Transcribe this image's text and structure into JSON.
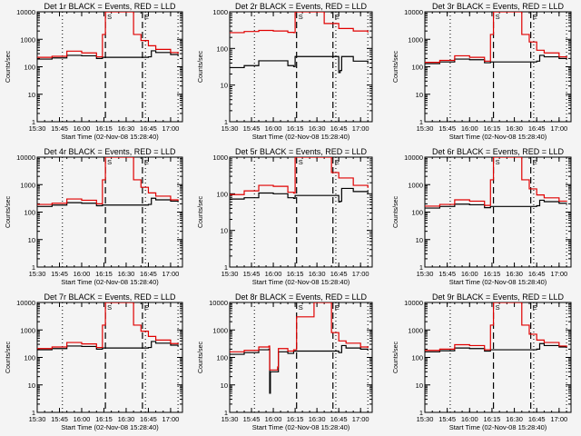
{
  "chart_data": [
    {
      "type": "line",
      "title": "Det 1r BLACK = Events, RED = LLD",
      "xlabel": "Start Time (02-Nov-08 15:28:40)",
      "ylabel": "Counts/sec",
      "yscale": "log",
      "ylim": [
        1,
        10000
      ],
      "yticks": [
        "1",
        "10",
        "100",
        "1000",
        "10000"
      ],
      "xlim": [
        "15:30",
        "17:08"
      ],
      "xticks": [
        "15:30",
        "15:45",
        "16:00",
        "16:15",
        "16:30",
        "16:45",
        "17:00"
      ],
      "markers": {
        "dashed": [
          "16:16",
          "16:41"
        ],
        "dotted": [
          "15:47",
          "16:43",
          "17:05"
        ],
        "labels": [
          "S",
          "E"
        ]
      },
      "series": [
        {
          "name": "Events",
          "color": "#000000",
          "x": [
            "15:30",
            "15:40",
            "15:50",
            "16:00",
            "16:10",
            "16:14",
            "16:45",
            "16:47",
            "16:50",
            "17:00",
            "17:05"
          ],
          "values": [
            190,
            210,
            260,
            250,
            200,
            220,
            230,
            380,
            330,
            280,
            260
          ]
        },
        {
          "name": "LLD",
          "color": "#e00000",
          "x": [
            "15:30",
            "15:40",
            "15:50",
            "16:00",
            "16:10",
            "16:14",
            "16:16",
            "16:30",
            "16:35",
            "16:40",
            "16:45",
            "16:50",
            "17:00",
            "17:05"
          ],
          "values": [
            220,
            240,
            370,
            320,
            230,
            1500,
            10000,
            10000,
            1500,
            900,
            580,
            430,
            330,
            300
          ]
        }
      ]
    },
    {
      "type": "line",
      "title": "Det 2r BLACK = Events, RED = LLD",
      "xlabel": "Start Time (02-Nov-08 15:28:40)",
      "ylabel": "Counts/sec",
      "yscale": "log",
      "ylim": [
        1,
        1000
      ],
      "yticks": [
        "1",
        "10",
        "100",
        "1000"
      ],
      "xlim": [
        "15:30",
        "17:08"
      ],
      "xticks": [
        "15:30",
        "15:45",
        "16:00",
        "16:15",
        "16:30",
        "16:45",
        "17:00"
      ],
      "markers": {
        "dashed": [
          "16:16",
          "16:41"
        ],
        "dotted": [
          "15:47",
          "16:43",
          "17:05"
        ],
        "labels": [
          "S",
          "E"
        ]
      },
      "series": [
        {
          "name": "Events",
          "color": "#000000",
          "x": [
            "15:30",
            "15:40",
            "15:50",
            "16:00",
            "16:10",
            "16:14",
            "16:15",
            "16:45",
            "16:46",
            "16:47",
            "16:55",
            "17:05"
          ],
          "values": [
            30,
            34,
            46,
            46,
            34,
            32,
            60,
            22,
            25,
            60,
            45,
            38
          ]
        },
        {
          "name": "LLD",
          "color": "#e00000",
          "x": [
            "15:30",
            "15:40",
            "15:50",
            "16:00",
            "16:10",
            "16:14",
            "16:15",
            "16:30",
            "16:35",
            "16:45",
            "16:55",
            "17:05"
          ],
          "values": [
            270,
            290,
            310,
            300,
            275,
            270,
            1000,
            1000,
            480,
            350,
            300,
            270
          ]
        }
      ]
    },
    {
      "type": "line",
      "title": "Det 3r BLACK = Events, RED = LLD",
      "xlabel": "Start Time (02-Nov-08 15:28:40)",
      "ylabel": "Counts/sec",
      "yscale": "log",
      "ylim": [
        1,
        10000
      ],
      "yticks": [
        "1",
        "10",
        "100",
        "1000",
        "10000"
      ],
      "xlim": [
        "15:30",
        "17:08"
      ],
      "xticks": [
        "15:30",
        "15:45",
        "16:00",
        "16:15",
        "16:30",
        "16:45",
        "17:00"
      ],
      "markers": {
        "dashed": [
          "16:16",
          "16:41"
        ],
        "dotted": [
          "15:47",
          "16:43",
          "17:05"
        ],
        "labels": [
          "S",
          "E"
        ]
      },
      "series": [
        {
          "name": "Events",
          "color": "#000000",
          "x": [
            "15:30",
            "15:40",
            "15:50",
            "16:00",
            "16:10",
            "16:14",
            "16:45",
            "16:47",
            "16:50",
            "17:00",
            "17:05"
          ],
          "values": [
            130,
            150,
            190,
            180,
            140,
            150,
            160,
            260,
            230,
            200,
            190
          ]
        },
        {
          "name": "LLD",
          "color": "#e00000",
          "x": [
            "15:30",
            "15:40",
            "15:50",
            "16:00",
            "16:10",
            "16:14",
            "16:16",
            "16:30",
            "16:35",
            "16:40",
            "16:45",
            "16:50",
            "17:00",
            "17:05"
          ],
          "values": [
            145,
            170,
            250,
            220,
            160,
            1500,
            10000,
            10000,
            1500,
            800,
            400,
            320,
            230,
            210
          ]
        }
      ]
    },
    {
      "type": "line",
      "title": "Det 4r BLACK = Events, RED = LLD",
      "xlabel": "Start Time (02-Nov-08 15:28:40)",
      "ylabel": "Counts/sec",
      "yscale": "log",
      "ylim": [
        1,
        10000
      ],
      "yticks": [
        "1",
        "10",
        "100",
        "1000",
        "10000"
      ],
      "xlim": [
        "15:30",
        "17:08"
      ],
      "xticks": [
        "15:30",
        "15:45",
        "16:00",
        "16:15",
        "16:30",
        "16:45",
        "17:00"
      ],
      "markers": {
        "dashed": [
          "16:16",
          "16:41"
        ],
        "dotted": [
          "15:47",
          "16:43",
          "17:05"
        ],
        "labels": [
          "S",
          "E"
        ]
      },
      "series": [
        {
          "name": "Events",
          "color": "#000000",
          "x": [
            "15:30",
            "15:40",
            "15:50",
            "16:00",
            "16:10",
            "16:14",
            "16:45",
            "16:47",
            "16:50",
            "17:00",
            "17:05"
          ],
          "values": [
            160,
            180,
            220,
            210,
            170,
            180,
            190,
            320,
            280,
            250,
            230
          ]
        },
        {
          "name": "LLD",
          "color": "#e00000",
          "x": [
            "15:30",
            "15:40",
            "15:50",
            "16:00",
            "16:10",
            "16:14",
            "16:16",
            "16:30",
            "16:35",
            "16:40",
            "16:45",
            "16:50",
            "17:00",
            "17:05"
          ],
          "values": [
            190,
            210,
            300,
            270,
            200,
            1500,
            10000,
            10000,
            1500,
            800,
            500,
            380,
            280,
            260
          ]
        }
      ]
    },
    {
      "type": "line",
      "title": "Det 5r BLACK = Events, RED = LLD",
      "xlabel": "Start Time (02-Nov-08 15:28:40)",
      "ylabel": "Counts/sec",
      "yscale": "log",
      "ylim": [
        1,
        1000
      ],
      "yticks": [
        "1",
        "10",
        "100",
        "1000"
      ],
      "xlim": [
        "15:30",
        "17:08"
      ],
      "xticks": [
        "15:30",
        "15:45",
        "16:00",
        "16:15",
        "16:30",
        "16:45",
        "17:00"
      ],
      "markers": {
        "dashed": [
          "16:16",
          "16:41"
        ],
        "dotted": [
          "15:47",
          "16:43",
          "17:05"
        ],
        "labels": [
          "S",
          "E"
        ]
      },
      "series": [
        {
          "name": "Events",
          "color": "#000000",
          "x": [
            "15:30",
            "15:40",
            "15:50",
            "16:00",
            "16:10",
            "16:14",
            "16:15",
            "16:45",
            "16:46",
            "16:47",
            "16:55",
            "17:05"
          ],
          "values": [
            72,
            78,
            105,
            100,
            78,
            75,
            90,
            60,
            62,
            140,
            115,
            105
          ]
        },
        {
          "name": "LLD",
          "color": "#e00000",
          "x": [
            "15:30",
            "15:40",
            "15:50",
            "16:00",
            "16:10",
            "16:14",
            "16:15",
            "16:30",
            "16:40",
            "16:45",
            "16:55",
            "17:05"
          ],
          "values": [
            95,
            120,
            170,
            160,
            110,
            105,
            1000,
            1000,
            380,
            270,
            170,
            145
          ]
        }
      ]
    },
    {
      "type": "line",
      "title": "Det 6r BLACK = Events, RED = LLD",
      "xlabel": "Start Time (02-Nov-08 15:28:40)",
      "ylabel": "Counts/sec",
      "yscale": "log",
      "ylim": [
        1,
        10000
      ],
      "yticks": [
        "1",
        "10",
        "100",
        "1000",
        "10000"
      ],
      "xlim": [
        "15:30",
        "17:08"
      ],
      "xticks": [
        "15:30",
        "15:45",
        "16:00",
        "16:15",
        "16:30",
        "16:45",
        "17:00"
      ],
      "markers": {
        "dashed": [
          "16:16",
          "16:41"
        ],
        "dotted": [
          "15:47",
          "16:43",
          "17:05"
        ],
        "labels": [
          "S",
          "E"
        ]
      },
      "series": [
        {
          "name": "Events",
          "color": "#000000",
          "x": [
            "15:30",
            "15:40",
            "15:50",
            "16:00",
            "16:10",
            "16:14",
            "16:45",
            "16:47",
            "16:50",
            "17:00",
            "17:05"
          ],
          "values": [
            140,
            160,
            195,
            185,
            145,
            160,
            170,
            270,
            240,
            210,
            200
          ]
        },
        {
          "name": "LLD",
          "color": "#e00000",
          "x": [
            "15:30",
            "15:40",
            "15:50",
            "16:00",
            "16:10",
            "16:14",
            "16:16",
            "16:30",
            "16:35",
            "16:40",
            "16:45",
            "16:50",
            "17:00",
            "17:05"
          ],
          "values": [
            165,
            190,
            280,
            250,
            175,
            1500,
            10000,
            10000,
            1500,
            700,
            420,
            330,
            250,
            240
          ]
        }
      ]
    },
    {
      "type": "line",
      "title": "Det 7r BLACK = Events, RED = LLD",
      "xlabel": "Start Time (02-Nov-08 15:28:40)",
      "ylabel": "Counts/sec",
      "yscale": "log",
      "ylim": [
        1,
        10000
      ],
      "yticks": [
        "1",
        "10",
        "100",
        "1000",
        "10000"
      ],
      "xlim": [
        "15:30",
        "17:08"
      ],
      "xticks": [
        "15:30",
        "15:45",
        "16:00",
        "16:15",
        "16:30",
        "16:45",
        "17:00"
      ],
      "markers": {
        "dashed": [
          "16:16",
          "16:41"
        ],
        "dotted": [
          "15:47",
          "16:43",
          "17:05"
        ],
        "labels": [
          "S",
          "E"
        ]
      },
      "series": [
        {
          "name": "Events",
          "color": "#000000",
          "x": [
            "15:30",
            "15:40",
            "15:50",
            "16:00",
            "16:10",
            "16:14",
            "16:45",
            "16:47",
            "16:50",
            "17:00",
            "17:05"
          ],
          "values": [
            190,
            210,
            260,
            250,
            200,
            220,
            230,
            380,
            330,
            280,
            260
          ]
        },
        {
          "name": "LLD",
          "color": "#e00000",
          "x": [
            "15:30",
            "15:40",
            "15:50",
            "16:00",
            "16:10",
            "16:14",
            "16:16",
            "16:30",
            "16:35",
            "16:40",
            "16:45",
            "16:50",
            "17:00",
            "17:05"
          ],
          "values": [
            210,
            240,
            350,
            310,
            230,
            1500,
            10000,
            10000,
            1500,
            900,
            580,
            430,
            320,
            300
          ]
        }
      ]
    },
    {
      "type": "line",
      "title": "Det 8r BLACK = Events, RED = LLD",
      "xlabel": "Start Time (02-Nov-08 15:28:40)",
      "ylabel": "Counts/sec",
      "yscale": "log",
      "ylim": [
        1,
        10000
      ],
      "yticks": [
        "1",
        "10",
        "100",
        "1000",
        "10000"
      ],
      "xlim": [
        "15:30",
        "17:08"
      ],
      "xticks": [
        "15:30",
        "15:45",
        "16:00",
        "16:15",
        "16:30",
        "16:45",
        "17:00"
      ],
      "markers": {
        "dashed": [
          "16:16",
          "16:41"
        ],
        "dotted": [
          "15:47",
          "16:43",
          "17:05"
        ],
        "labels": [
          "S",
          "E"
        ]
      },
      "series": [
        {
          "name": "Events",
          "color": "#000000",
          "x": [
            "15:30",
            "15:40",
            "15:50",
            "15:57",
            "15:57.5",
            "15:58",
            "16:03",
            "16:03.5",
            "16:10",
            "16:14",
            "16:45",
            "16:47",
            "16:50",
            "17:00",
            "17:05"
          ],
          "values": [
            130,
            150,
            190,
            200,
            5,
            30,
            30,
            160,
            140,
            170,
            150,
            270,
            220,
            200,
            180
          ]
        },
        {
          "name": "LLD",
          "color": "#e00000",
          "x": [
            "15:30",
            "15:40",
            "15:50",
            "15:57",
            "15:57.5",
            "16:03",
            "16:03.5",
            "16:10",
            "16:14",
            "16:16",
            "16:28",
            "16:30",
            "16:40",
            "16:45",
            "16:50",
            "17:00",
            "17:05"
          ],
          "values": [
            160,
            180,
            240,
            260,
            35,
            45,
            210,
            170,
            190,
            3000,
            10000,
            10000,
            800,
            400,
            330,
            240,
            220
          ]
        }
      ]
    },
    {
      "type": "line",
      "title": "Det 9r BLACK = Events, RED = LLD",
      "xlabel": "Start Time (02-Nov-08 15:28:40)",
      "ylabel": "Counts/sec",
      "yscale": "log",
      "ylim": [
        1,
        10000
      ],
      "yticks": [
        "1",
        "10",
        "100",
        "1000",
        "10000"
      ],
      "xlim": [
        "15:30",
        "17:08"
      ],
      "xticks": [
        "15:30",
        "15:45",
        "16:00",
        "16:15",
        "16:30",
        "16:45",
        "17:00"
      ],
      "markers": {
        "dashed": [
          "16:16",
          "16:41"
        ],
        "dotted": [
          "15:47",
          "16:43",
          "17:05"
        ],
        "labels": [
          "S",
          "E"
        ]
      },
      "series": [
        {
          "name": "Events",
          "color": "#000000",
          "x": [
            "15:30",
            "15:40",
            "15:50",
            "16:00",
            "16:10",
            "16:14",
            "16:45",
            "16:47",
            "16:50",
            "17:00",
            "17:05"
          ],
          "values": [
            160,
            175,
            220,
            210,
            170,
            190,
            200,
            320,
            270,
            240,
            220
          ]
        },
        {
          "name": "LLD",
          "color": "#e00000",
          "x": [
            "15:30",
            "15:40",
            "15:50",
            "16:00",
            "16:10",
            "16:14",
            "16:16",
            "16:30",
            "16:35",
            "16:40",
            "16:45",
            "16:50",
            "17:00",
            "17:05"
          ],
          "values": [
            180,
            200,
            290,
            270,
            190,
            1500,
            10000,
            10000,
            1500,
            700,
            430,
            350,
            260,
            240
          ]
        }
      ]
    }
  ]
}
